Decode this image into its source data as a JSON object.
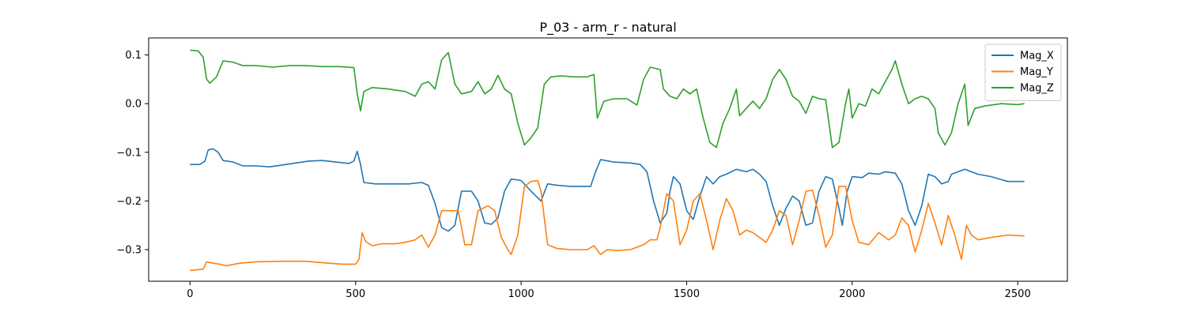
{
  "chart_data": {
    "type": "line",
    "title": "P_03 - arm_r - natural",
    "xlabel": "",
    "ylabel": "",
    "xlim": [
      -125,
      2650
    ],
    "ylim": [
      -0.365,
      0.135
    ],
    "x_ticks": [
      0,
      500,
      1000,
      1500,
      2000,
      2500
    ],
    "y_ticks": [
      -0.3,
      -0.2,
      -0.1,
      0.0,
      0.1
    ],
    "y_tick_labels": [
      "−0.3",
      "−0.2",
      "−0.1",
      "0.0",
      "0.1"
    ],
    "legend_position": "top-right",
    "grid": false,
    "series": [
      {
        "name": "Mag_X",
        "color": "#1f77b4",
        "points": [
          [
            0,
            -0.125
          ],
          [
            30,
            -0.125
          ],
          [
            45,
            -0.118
          ],
          [
            55,
            -0.095
          ],
          [
            70,
            -0.093
          ],
          [
            85,
            -0.1
          ],
          [
            100,
            -0.117
          ],
          [
            130,
            -0.12
          ],
          [
            160,
            -0.128
          ],
          [
            200,
            -0.128
          ],
          [
            240,
            -0.13
          ],
          [
            280,
            -0.126
          ],
          [
            320,
            -0.122
          ],
          [
            360,
            -0.118
          ],
          [
            400,
            -0.117
          ],
          [
            440,
            -0.12
          ],
          [
            480,
            -0.123
          ],
          [
            495,
            -0.118
          ],
          [
            505,
            -0.098
          ],
          [
            515,
            -0.125
          ],
          [
            525,
            -0.162
          ],
          [
            560,
            -0.165
          ],
          [
            600,
            -0.165
          ],
          [
            660,
            -0.165
          ],
          [
            700,
            -0.162
          ],
          [
            720,
            -0.168
          ],
          [
            740,
            -0.205
          ],
          [
            760,
            -0.255
          ],
          [
            780,
            -0.262
          ],
          [
            800,
            -0.25
          ],
          [
            820,
            -0.18
          ],
          [
            850,
            -0.18
          ],
          [
            870,
            -0.2
          ],
          [
            890,
            -0.245
          ],
          [
            910,
            -0.248
          ],
          [
            930,
            -0.235
          ],
          [
            950,
            -0.18
          ],
          [
            970,
            -0.155
          ],
          [
            1000,
            -0.158
          ],
          [
            1030,
            -0.18
          ],
          [
            1060,
            -0.2
          ],
          [
            1080,
            -0.165
          ],
          [
            1110,
            -0.168
          ],
          [
            1150,
            -0.17
          ],
          [
            1210,
            -0.17
          ],
          [
            1225,
            -0.14
          ],
          [
            1240,
            -0.115
          ],
          [
            1280,
            -0.12
          ],
          [
            1330,
            -0.122
          ],
          [
            1360,
            -0.125
          ],
          [
            1380,
            -0.14
          ],
          [
            1400,
            -0.2
          ],
          [
            1420,
            -0.245
          ],
          [
            1440,
            -0.225
          ],
          [
            1450,
            -0.18
          ],
          [
            1460,
            -0.15
          ],
          [
            1480,
            -0.165
          ],
          [
            1500,
            -0.22
          ],
          [
            1520,
            -0.238
          ],
          [
            1540,
            -0.19
          ],
          [
            1560,
            -0.15
          ],
          [
            1580,
            -0.165
          ],
          [
            1600,
            -0.15
          ],
          [
            1620,
            -0.145
          ],
          [
            1650,
            -0.135
          ],
          [
            1680,
            -0.14
          ],
          [
            1700,
            -0.135
          ],
          [
            1720,
            -0.145
          ],
          [
            1740,
            -0.16
          ],
          [
            1760,
            -0.21
          ],
          [
            1780,
            -0.25
          ],
          [
            1800,
            -0.215
          ],
          [
            1820,
            -0.19
          ],
          [
            1840,
            -0.2
          ],
          [
            1860,
            -0.25
          ],
          [
            1880,
            -0.245
          ],
          [
            1900,
            -0.18
          ],
          [
            1920,
            -0.15
          ],
          [
            1940,
            -0.155
          ],
          [
            1960,
            -0.215
          ],
          [
            1970,
            -0.25
          ],
          [
            1985,
            -0.18
          ],
          [
            2000,
            -0.15
          ],
          [
            2030,
            -0.152
          ],
          [
            2050,
            -0.143
          ],
          [
            2080,
            -0.145
          ],
          [
            2100,
            -0.14
          ],
          [
            2130,
            -0.143
          ],
          [
            2150,
            -0.165
          ],
          [
            2170,
            -0.22
          ],
          [
            2190,
            -0.25
          ],
          [
            2210,
            -0.21
          ],
          [
            2230,
            -0.145
          ],
          [
            2250,
            -0.15
          ],
          [
            2270,
            -0.165
          ],
          [
            2290,
            -0.16
          ],
          [
            2300,
            -0.145
          ],
          [
            2340,
            -0.135
          ],
          [
            2380,
            -0.145
          ],
          [
            2420,
            -0.15
          ],
          [
            2470,
            -0.16
          ],
          [
            2520,
            -0.16
          ]
        ]
      },
      {
        "name": "Mag_Y",
        "color": "#ff7f0e",
        "points": [
          [
            0,
            -0.343
          ],
          [
            40,
            -0.34
          ],
          [
            50,
            -0.325
          ],
          [
            70,
            -0.328
          ],
          [
            90,
            -0.33
          ],
          [
            110,
            -0.333
          ],
          [
            150,
            -0.328
          ],
          [
            200,
            -0.325
          ],
          [
            280,
            -0.324
          ],
          [
            350,
            -0.324
          ],
          [
            400,
            -0.327
          ],
          [
            460,
            -0.33
          ],
          [
            500,
            -0.33
          ],
          [
            510,
            -0.32
          ],
          [
            520,
            -0.265
          ],
          [
            530,
            -0.283
          ],
          [
            550,
            -0.292
          ],
          [
            580,
            -0.288
          ],
          [
            620,
            -0.288
          ],
          [
            650,
            -0.285
          ],
          [
            680,
            -0.28
          ],
          [
            700,
            -0.27
          ],
          [
            720,
            -0.295
          ],
          [
            740,
            -0.27
          ],
          [
            760,
            -0.22
          ],
          [
            790,
            -0.22
          ],
          [
            810,
            -0.22
          ],
          [
            830,
            -0.29
          ],
          [
            850,
            -0.29
          ],
          [
            870,
            -0.22
          ],
          [
            900,
            -0.21
          ],
          [
            920,
            -0.22
          ],
          [
            940,
            -0.275
          ],
          [
            960,
            -0.3
          ],
          [
            970,
            -0.31
          ],
          [
            990,
            -0.27
          ],
          [
            1010,
            -0.17
          ],
          [
            1030,
            -0.16
          ],
          [
            1050,
            -0.158
          ],
          [
            1060,
            -0.18
          ],
          [
            1080,
            -0.29
          ],
          [
            1110,
            -0.298
          ],
          [
            1150,
            -0.3
          ],
          [
            1200,
            -0.3
          ],
          [
            1220,
            -0.292
          ],
          [
            1240,
            -0.31
          ],
          [
            1260,
            -0.3
          ],
          [
            1290,
            -0.302
          ],
          [
            1330,
            -0.3
          ],
          [
            1370,
            -0.29
          ],
          [
            1390,
            -0.28
          ],
          [
            1410,
            -0.28
          ],
          [
            1420,
            -0.255
          ],
          [
            1440,
            -0.185
          ],
          [
            1460,
            -0.2
          ],
          [
            1480,
            -0.29
          ],
          [
            1500,
            -0.26
          ],
          [
            1520,
            -0.2
          ],
          [
            1540,
            -0.185
          ],
          [
            1560,
            -0.24
          ],
          [
            1580,
            -0.3
          ],
          [
            1600,
            -0.24
          ],
          [
            1620,
            -0.195
          ],
          [
            1640,
            -0.22
          ],
          [
            1660,
            -0.27
          ],
          [
            1680,
            -0.26
          ],
          [
            1700,
            -0.265
          ],
          [
            1720,
            -0.275
          ],
          [
            1740,
            -0.285
          ],
          [
            1760,
            -0.26
          ],
          [
            1780,
            -0.22
          ],
          [
            1800,
            -0.23
          ],
          [
            1820,
            -0.29
          ],
          [
            1840,
            -0.24
          ],
          [
            1860,
            -0.18
          ],
          [
            1880,
            -0.178
          ],
          [
            1900,
            -0.23
          ],
          [
            1920,
            -0.295
          ],
          [
            1940,
            -0.27
          ],
          [
            1960,
            -0.17
          ],
          [
            1980,
            -0.17
          ],
          [
            2000,
            -0.24
          ],
          [
            2020,
            -0.285
          ],
          [
            2050,
            -0.29
          ],
          [
            2080,
            -0.265
          ],
          [
            2110,
            -0.28
          ],
          [
            2130,
            -0.27
          ],
          [
            2150,
            -0.235
          ],
          [
            2170,
            -0.25
          ],
          [
            2190,
            -0.305
          ],
          [
            2210,
            -0.26
          ],
          [
            2230,
            -0.205
          ],
          [
            2250,
            -0.245
          ],
          [
            2270,
            -0.29
          ],
          [
            2290,
            -0.23
          ],
          [
            2310,
            -0.27
          ],
          [
            2330,
            -0.32
          ],
          [
            2345,
            -0.25
          ],
          [
            2360,
            -0.27
          ],
          [
            2380,
            -0.28
          ],
          [
            2420,
            -0.275
          ],
          [
            2470,
            -0.27
          ],
          [
            2520,
            -0.272
          ]
        ]
      },
      {
        "name": "Mag_Z",
        "color": "#2ca02c",
        "points": [
          [
            0,
            0.11
          ],
          [
            25,
            0.108
          ],
          [
            40,
            0.095
          ],
          [
            50,
            0.05
          ],
          [
            60,
            0.042
          ],
          [
            80,
            0.055
          ],
          [
            100,
            0.088
          ],
          [
            130,
            0.085
          ],
          [
            160,
            0.078
          ],
          [
            200,
            0.078
          ],
          [
            250,
            0.075
          ],
          [
            300,
            0.078
          ],
          [
            350,
            0.078
          ],
          [
            400,
            0.076
          ],
          [
            450,
            0.076
          ],
          [
            495,
            0.074
          ],
          [
            505,
            0.02
          ],
          [
            515,
            -0.015
          ],
          [
            525,
            0.025
          ],
          [
            550,
            0.033
          ],
          [
            600,
            0.03
          ],
          [
            650,
            0.025
          ],
          [
            680,
            0.015
          ],
          [
            700,
            0.04
          ],
          [
            720,
            0.045
          ],
          [
            740,
            0.03
          ],
          [
            760,
            0.09
          ],
          [
            780,
            0.105
          ],
          [
            800,
            0.04
          ],
          [
            820,
            0.02
          ],
          [
            850,
            0.025
          ],
          [
            870,
            0.045
          ],
          [
            890,
            0.02
          ],
          [
            910,
            0.03
          ],
          [
            930,
            0.058
          ],
          [
            950,
            0.03
          ],
          [
            970,
            0.02
          ],
          [
            990,
            -0.04
          ],
          [
            1010,
            -0.085
          ],
          [
            1030,
            -0.07
          ],
          [
            1050,
            -0.05
          ],
          [
            1070,
            0.04
          ],
          [
            1090,
            0.055
          ],
          [
            1120,
            0.057
          ],
          [
            1160,
            0.055
          ],
          [
            1200,
            0.055
          ],
          [
            1220,
            0.06
          ],
          [
            1230,
            -0.03
          ],
          [
            1250,
            0.005
          ],
          [
            1280,
            0.01
          ],
          [
            1320,
            0.01
          ],
          [
            1350,
            -0.003
          ],
          [
            1370,
            0.05
          ],
          [
            1390,
            0.075
          ],
          [
            1420,
            0.07
          ],
          [
            1430,
            0.03
          ],
          [
            1450,
            0.015
          ],
          [
            1470,
            0.01
          ],
          [
            1490,
            0.03
          ],
          [
            1510,
            0.02
          ],
          [
            1530,
            0.03
          ],
          [
            1550,
            -0.03
          ],
          [
            1570,
            -0.08
          ],
          [
            1590,
            -0.09
          ],
          [
            1610,
            -0.04
          ],
          [
            1630,
            -0.01
          ],
          [
            1650,
            0.03
          ],
          [
            1660,
            -0.025
          ],
          [
            1680,
            -0.01
          ],
          [
            1700,
            0.005
          ],
          [
            1720,
            -0.01
          ],
          [
            1740,
            0.01
          ],
          [
            1760,
            0.05
          ],
          [
            1780,
            0.07
          ],
          [
            1800,
            0.05
          ],
          [
            1820,
            0.015
          ],
          [
            1840,
            0.005
          ],
          [
            1860,
            -0.02
          ],
          [
            1880,
            0.015
          ],
          [
            1900,
            0.01
          ],
          [
            1920,
            0.008
          ],
          [
            1940,
            -0.09
          ],
          [
            1960,
            -0.08
          ],
          [
            1980,
            0.0
          ],
          [
            1990,
            0.03
          ],
          [
            2000,
            -0.03
          ],
          [
            2020,
            0.0
          ],
          [
            2040,
            -0.005
          ],
          [
            2060,
            0.03
          ],
          [
            2080,
            0.02
          ],
          [
            2100,
            0.045
          ],
          [
            2120,
            0.07
          ],
          [
            2130,
            0.088
          ],
          [
            2150,
            0.04
          ],
          [
            2170,
            0.0
          ],
          [
            2190,
            0.01
          ],
          [
            2210,
            0.015
          ],
          [
            2230,
            0.01
          ],
          [
            2250,
            -0.01
          ],
          [
            2260,
            -0.06
          ],
          [
            2280,
            -0.085
          ],
          [
            2300,
            -0.06
          ],
          [
            2320,
            0.0
          ],
          [
            2340,
            0.04
          ],
          [
            2350,
            -0.045
          ],
          [
            2370,
            -0.01
          ],
          [
            2400,
            -0.005
          ],
          [
            2450,
            0.0
          ],
          [
            2500,
            -0.002
          ],
          [
            2520,
            0.0
          ]
        ]
      }
    ]
  }
}
